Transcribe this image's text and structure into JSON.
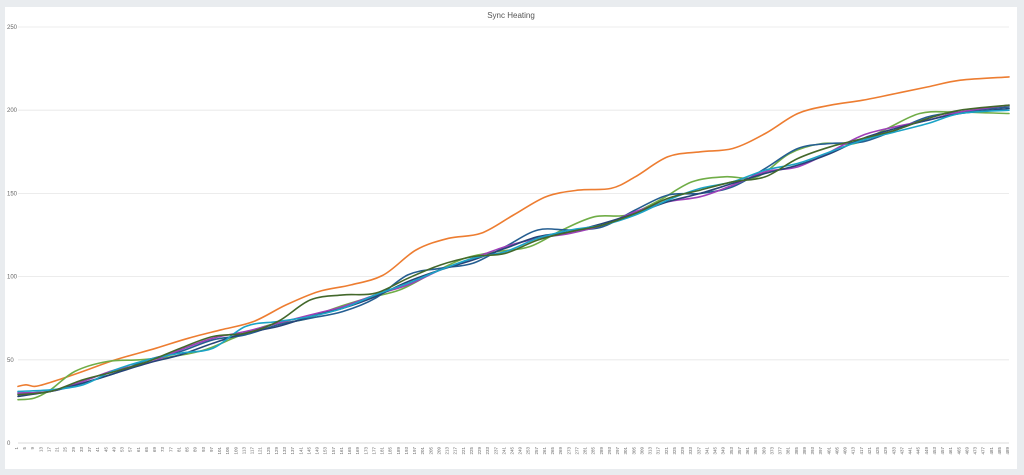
{
  "chart_data": {
    "type": "line",
    "title": "Sync Heating",
    "xlabel": "",
    "ylabel": "",
    "ylim": [
      0,
      250
    ],
    "yticks": [
      0,
      50,
      100,
      150,
      200,
      250
    ],
    "x_range": [
      1,
      489
    ],
    "x_tick_step": 4,
    "grid": true,
    "legend": "none",
    "series": [
      {
        "color": "#ed7d31",
        "points": [
          [
            1,
            34
          ],
          [
            5,
            35
          ],
          [
            9,
            34
          ],
          [
            13,
            35
          ],
          [
            21,
            38
          ],
          [
            33,
            43
          ],
          [
            49,
            50
          ],
          [
            69,
            57
          ],
          [
            85,
            63
          ],
          [
            101,
            68
          ],
          [
            117,
            73
          ],
          [
            133,
            83
          ],
          [
            149,
            91
          ],
          [
            165,
            95
          ],
          [
            181,
            101
          ],
          [
            197,
            116
          ],
          [
            213,
            123
          ],
          [
            229,
            126
          ],
          [
            245,
            137
          ],
          [
            261,
            148
          ],
          [
            277,
            152
          ],
          [
            293,
            153
          ],
          [
            305,
            160
          ],
          [
            321,
            172
          ],
          [
            337,
            175
          ],
          [
            353,
            177
          ],
          [
            369,
            186
          ],
          [
            385,
            198
          ],
          [
            401,
            203
          ],
          [
            417,
            206
          ],
          [
            433,
            210
          ],
          [
            449,
            214
          ],
          [
            465,
            218
          ],
          [
            489,
            220
          ]
        ]
      },
      {
        "color": "#70ad47",
        "points": [
          [
            1,
            26
          ],
          [
            9,
            27
          ],
          [
            17,
            32
          ],
          [
            29,
            43
          ],
          [
            45,
            49
          ],
          [
            61,
            50
          ],
          [
            77,
            52
          ],
          [
            93,
            56
          ],
          [
            109,
            64
          ],
          [
            125,
            71
          ],
          [
            141,
            74
          ],
          [
            157,
            81
          ],
          [
            173,
            87
          ],
          [
            189,
            92
          ],
          [
            205,
            102
          ],
          [
            221,
            111
          ],
          [
            237,
            115
          ],
          [
            253,
            118
          ],
          [
            269,
            128
          ],
          [
            285,
            136
          ],
          [
            301,
            137
          ],
          [
            317,
            146
          ],
          [
            333,
            157
          ],
          [
            349,
            160
          ],
          [
            365,
            160
          ],
          [
            381,
            174
          ],
          [
            397,
            180
          ],
          [
            413,
            180
          ],
          [
            429,
            189
          ],
          [
            445,
            198
          ],
          [
            461,
            199
          ],
          [
            489,
            198
          ]
        ]
      },
      {
        "color": "#255e91",
        "points": [
          [
            1,
            30
          ],
          [
            17,
            31
          ],
          [
            33,
            36
          ],
          [
            49,
            42
          ],
          [
            65,
            50
          ],
          [
            81,
            55
          ],
          [
            97,
            62
          ],
          [
            113,
            65
          ],
          [
            129,
            71
          ],
          [
            145,
            75
          ],
          [
            161,
            79
          ],
          [
            177,
            87
          ],
          [
            193,
            101
          ],
          [
            209,
            105
          ],
          [
            225,
            108
          ],
          [
            241,
            118
          ],
          [
            257,
            128
          ],
          [
            273,
            128
          ],
          [
            289,
            130
          ],
          [
            305,
            140
          ],
          [
            321,
            149
          ],
          [
            337,
            150
          ],
          [
            353,
            154
          ],
          [
            369,
            165
          ],
          [
            385,
            177
          ],
          [
            401,
            180
          ],
          [
            417,
            181
          ],
          [
            433,
            188
          ],
          [
            449,
            196
          ],
          [
            465,
            199
          ],
          [
            489,
            202
          ]
        ]
      },
      {
        "color": "#9e3fb8",
        "points": [
          [
            1,
            30
          ],
          [
            17,
            31
          ],
          [
            33,
            37
          ],
          [
            49,
            44
          ],
          [
            65,
            48
          ],
          [
            81,
            56
          ],
          [
            97,
            63
          ],
          [
            113,
            67
          ],
          [
            129,
            72
          ],
          [
            145,
            77
          ],
          [
            161,
            82
          ],
          [
            177,
            89
          ],
          [
            193,
            95
          ],
          [
            209,
            104
          ],
          [
            225,
            111
          ],
          [
            241,
            118
          ],
          [
            257,
            123
          ],
          [
            273,
            126
          ],
          [
            289,
            131
          ],
          [
            305,
            139
          ],
          [
            321,
            145
          ],
          [
            337,
            148
          ],
          [
            353,
            155
          ],
          [
            369,
            163
          ],
          [
            385,
            166
          ],
          [
            401,
            175
          ],
          [
            417,
            185
          ],
          [
            433,
            190
          ],
          [
            449,
            194
          ],
          [
            465,
            199
          ],
          [
            489,
            203
          ]
        ]
      },
      {
        "color": "#264478",
        "points": [
          [
            1,
            28
          ],
          [
            17,
            31
          ],
          [
            33,
            36
          ],
          [
            49,
            42
          ],
          [
            65,
            48
          ],
          [
            81,
            53
          ],
          [
            97,
            60
          ],
          [
            113,
            66
          ],
          [
            129,
            70
          ],
          [
            145,
            76
          ],
          [
            161,
            81
          ],
          [
            177,
            88
          ],
          [
            193,
            97
          ],
          [
            209,
            104
          ],
          [
            225,
            110
          ],
          [
            241,
            117
          ],
          [
            257,
            124
          ],
          [
            273,
            127
          ],
          [
            289,
            132
          ],
          [
            305,
            138
          ],
          [
            321,
            145
          ],
          [
            337,
            150
          ],
          [
            353,
            156
          ],
          [
            369,
            162
          ],
          [
            385,
            167
          ],
          [
            401,
            174
          ],
          [
            417,
            183
          ],
          [
            433,
            189
          ],
          [
            449,
            194
          ],
          [
            465,
            198
          ],
          [
            489,
            201
          ]
        ]
      },
      {
        "color": "#1ba3c6",
        "points": [
          [
            1,
            31
          ],
          [
            17,
            32
          ],
          [
            33,
            35
          ],
          [
            49,
            44
          ],
          [
            65,
            50
          ],
          [
            81,
            54
          ],
          [
            97,
            57
          ],
          [
            113,
            70
          ],
          [
            129,
            73
          ],
          [
            145,
            76
          ],
          [
            161,
            81
          ],
          [
            177,
            89
          ],
          [
            193,
            96
          ],
          [
            209,
            104
          ],
          [
            225,
            111
          ],
          [
            241,
            115
          ],
          [
            257,
            123
          ],
          [
            273,
            128
          ],
          [
            289,
            131
          ],
          [
            305,
            137
          ],
          [
            321,
            146
          ],
          [
            337,
            153
          ],
          [
            353,
            157
          ],
          [
            369,
            164
          ],
          [
            385,
            168
          ],
          [
            401,
            175
          ],
          [
            417,
            182
          ],
          [
            433,
            187
          ],
          [
            449,
            192
          ],
          [
            465,
            198
          ],
          [
            489,
            200
          ]
        ]
      },
      {
        "color": "#43682b",
        "points": [
          [
            1,
            29
          ],
          [
            17,
            31
          ],
          [
            33,
            38
          ],
          [
            49,
            43
          ],
          [
            65,
            49
          ],
          [
            81,
            57
          ],
          [
            97,
            64
          ],
          [
            113,
            66
          ],
          [
            129,
            73
          ],
          [
            145,
            86
          ],
          [
            161,
            89
          ],
          [
            177,
            90
          ],
          [
            193,
            99
          ],
          [
            209,
            107
          ],
          [
            225,
            112
          ],
          [
            241,
            114
          ],
          [
            257,
            122
          ],
          [
            273,
            127
          ],
          [
            289,
            131
          ],
          [
            305,
            138
          ],
          [
            321,
            147
          ],
          [
            337,
            152
          ],
          [
            353,
            157
          ],
          [
            369,
            160
          ],
          [
            385,
            171
          ],
          [
            401,
            178
          ],
          [
            417,
            183
          ],
          [
            433,
            188
          ],
          [
            449,
            195
          ],
          [
            465,
            200
          ],
          [
            489,
            203
          ]
        ]
      }
    ]
  }
}
